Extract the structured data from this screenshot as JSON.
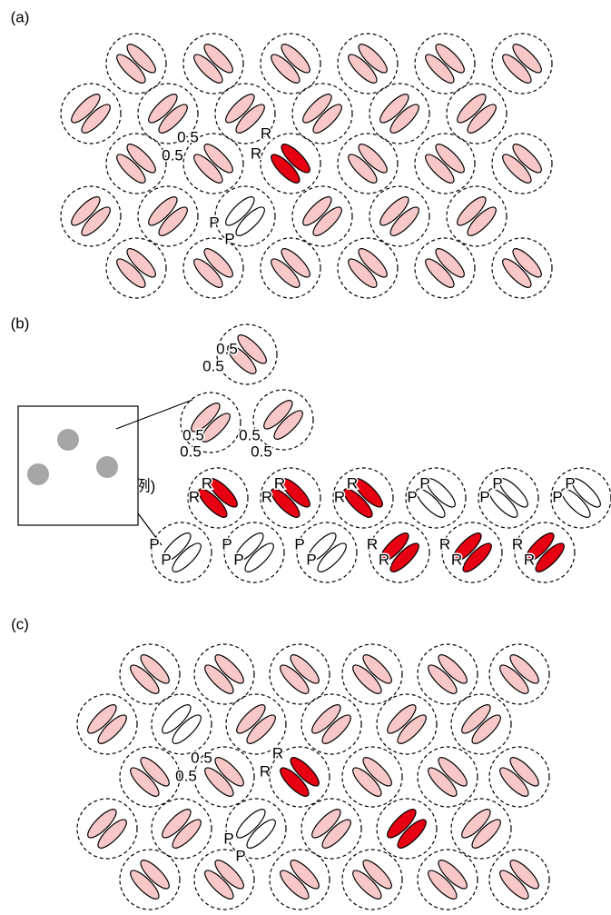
{
  "panels": [
    {
      "label": "(a)",
      "annotations": [
        "0.5",
        "0.5",
        "R",
        "R",
        "P",
        "P"
      ]
    },
    {
      "label": "(b)",
      "example_label": "例)",
      "annotations": [
        "0.5",
        "0.5",
        "0.5",
        "0.5",
        "0.5",
        "0.5",
        "R",
        "R",
        "R",
        "R",
        "R",
        "R",
        "P",
        "P",
        "P",
        "P",
        "P",
        "P",
        "P",
        "P",
        "P",
        "P",
        "P",
        "P",
        "R",
        "R",
        "R",
        "R",
        "R",
        "R"
      ]
    },
    {
      "label": "(c)",
      "annotations": [
        "0.5",
        "0.5",
        "R",
        "R",
        "P",
        "P"
      ]
    }
  ]
}
